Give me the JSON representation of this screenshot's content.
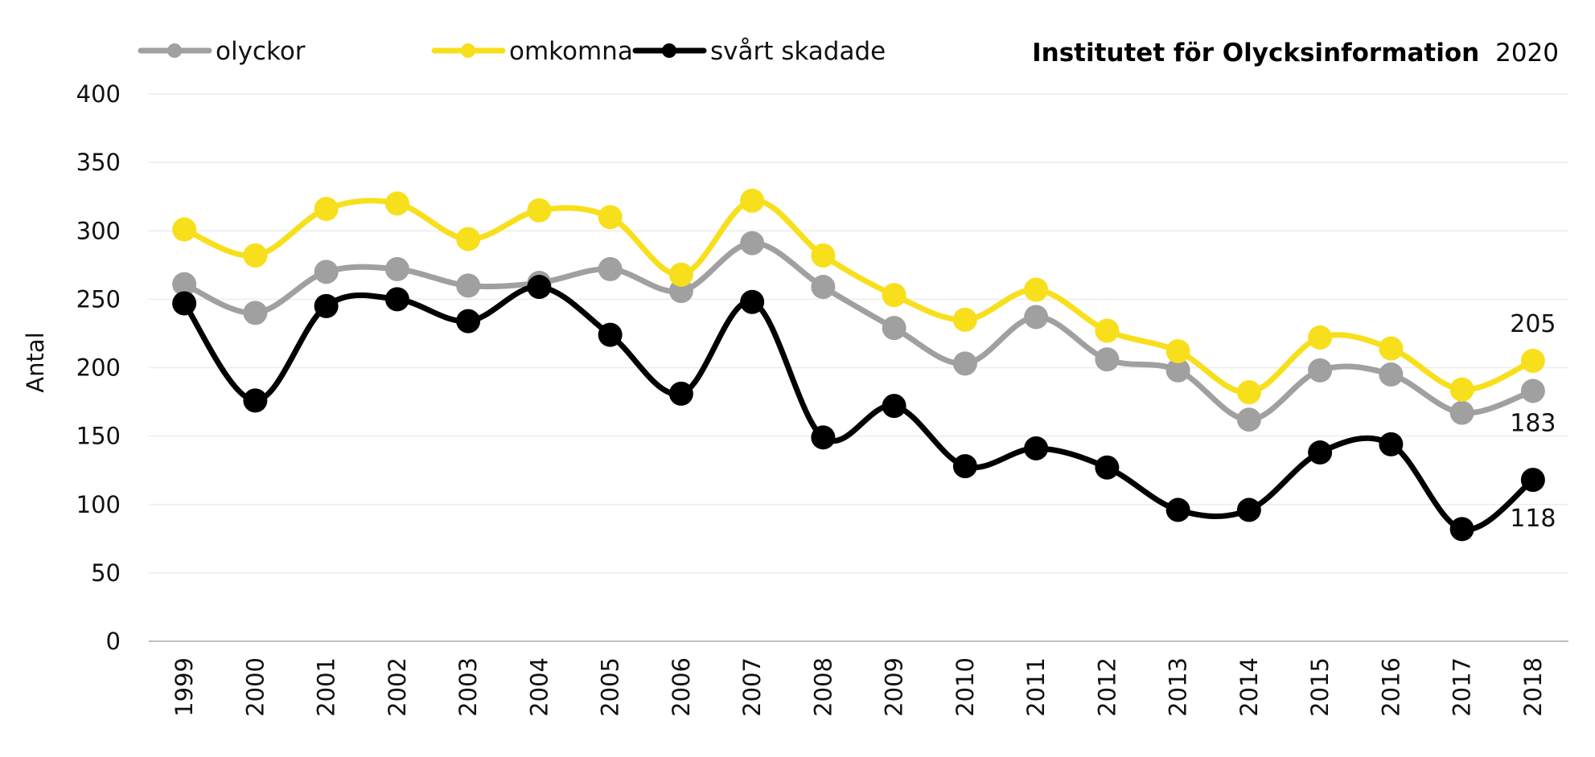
{
  "source": {
    "org": "Institutet för Olycksinformation",
    "year": "2020"
  },
  "chart_data": {
    "type": "line",
    "title": "",
    "xlabel": "",
    "ylabel": "Antal",
    "ylim": [
      0,
      400
    ],
    "yticks": [
      0,
      50,
      100,
      150,
      200,
      250,
      300,
      350,
      400
    ],
    "grid": true,
    "legend": "top-left",
    "categories": [
      "1999",
      "2000",
      "2001",
      "2002",
      "2003",
      "2004",
      "2005",
      "2006",
      "2007",
      "2008",
      "2009",
      "2010",
      "2011",
      "2012",
      "2013",
      "2014",
      "2015",
      "2016",
      "2017",
      "2018"
    ],
    "series": [
      {
        "name": "olyckor",
        "color": "#a0a0a0",
        "values": [
          261,
          240,
          270,
          272,
          260,
          262,
          272,
          256,
          291,
          259,
          229,
          203,
          237,
          206,
          198,
          162,
          198,
          195,
          167,
          183
        ]
      },
      {
        "name": "omkomna",
        "color": "#f8df1c",
        "values": [
          301,
          282,
          316,
          320,
          294,
          315,
          310,
          268,
          322,
          282,
          253,
          235,
          257,
          227,
          212,
          182,
          222,
          214,
          184,
          205
        ]
      },
      {
        "name": "svårt skadade",
        "color": "#000000",
        "values": [
          247,
          176,
          245,
          250,
          234,
          259,
          224,
          181,
          248,
          149,
          172,
          128,
          141,
          127,
          96,
          96,
          138,
          144,
          82,
          118
        ]
      }
    ],
    "end_labels": [
      "205",
      "183",
      "118"
    ]
  }
}
